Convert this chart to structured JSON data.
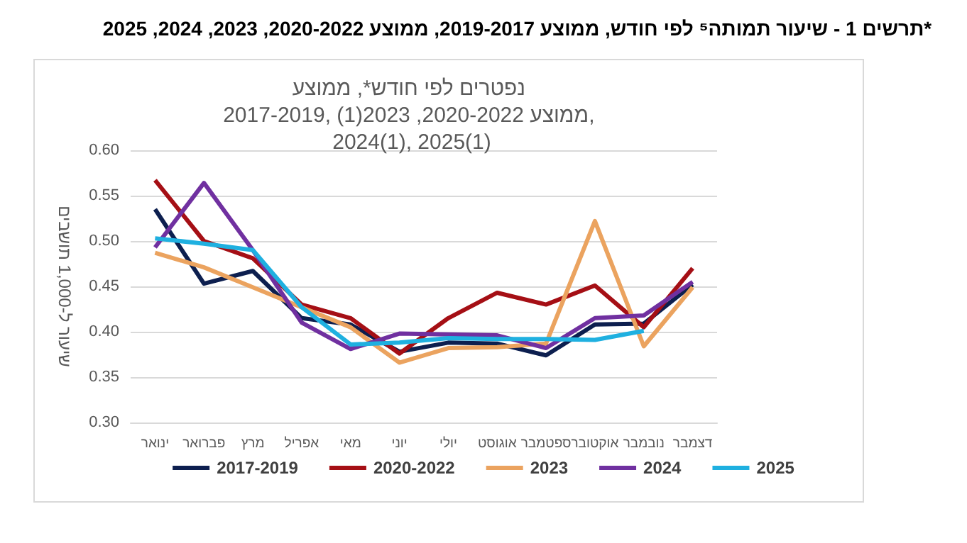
{
  "chart_data": {
    "type": "line",
    "title": "תרשים 1 - שיעור תמותה⁵ לפי חודש, ממוצע 2019-2017, ממוצע 2020-2022, 2023, 2024, 2025*",
    "subtitle": "נפטרים לפי חודש*, ממוצע 2017-2019, ממוצע 2020-2022, 2023(1), 2024(1), 2025(1)",
    "ylabel": "שיעור ל-1,000 תושבים",
    "categories": [
      "ינואר",
      "פברואר",
      "מרץ",
      "אפריל",
      "מאי",
      "יוני",
      "יולי",
      "אוגוסט",
      "ספטמבר",
      "אוקטובר",
      "נובמבר",
      "דצמבר"
    ],
    "series": [
      {
        "name": "2017-2019",
        "color": "#0d1f4f",
        "values": [
          0.535,
          0.453,
          0.467,
          0.415,
          0.408,
          0.378,
          0.388,
          0.387,
          0.374,
          0.408,
          0.409,
          0.452
        ]
      },
      {
        "name": "2020-2022",
        "color": "#a50f15",
        "values": [
          0.567,
          0.5,
          0.481,
          0.43,
          0.415,
          0.376,
          0.415,
          0.443,
          0.43,
          0.451,
          0.405,
          0.47
        ]
      },
      {
        "name": "2023",
        "color": "#eba35f",
        "values": [
          0.487,
          0.471,
          0.449,
          0.427,
          0.405,
          0.366,
          0.382,
          0.383,
          0.387,
          0.522,
          0.384,
          0.449
        ]
      },
      {
        "name": "2024",
        "color": "#7030a0",
        "values": [
          0.493,
          0.564,
          0.49,
          0.41,
          0.381,
          0.398,
          0.397,
          0.396,
          0.382,
          0.415,
          0.418,
          0.455
        ]
      },
      {
        "name": "2025",
        "color": "#1fb0e0",
        "values": [
          0.503,
          0.497,
          0.49,
          0.427,
          0.386,
          0.388,
          0.393,
          0.392,
          0.392,
          0.391,
          0.401,
          null
        ]
      }
    ],
    "ylim": [
      0.3,
      0.6
    ],
    "yticks": [
      {
        "value": 0.3,
        "label": "0.30"
      },
      {
        "value": 0.35,
        "label": "0.35"
      },
      {
        "value": 0.4,
        "label": "0.40"
      },
      {
        "value": 0.45,
        "label": "0.45"
      },
      {
        "value": 0.5,
        "label": "0.50"
      },
      {
        "value": 0.55,
        "label": "0.55"
      },
      {
        "value": 0.6,
        "label": "0.60"
      }
    ],
    "grid": "y",
    "legend": "bottom",
    "marker": "none",
    "line_style": "solid"
  }
}
